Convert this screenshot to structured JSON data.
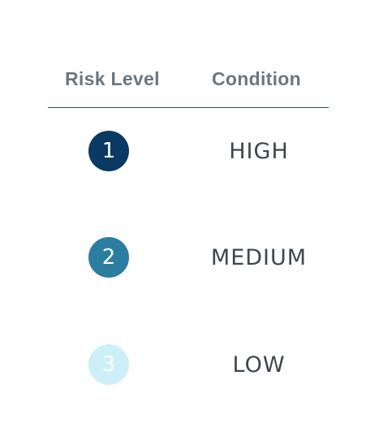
{
  "table": {
    "headers": {
      "risk_level": "Risk Level",
      "condition": "Condition"
    },
    "rows": [
      {
        "level": "1",
        "condition": "HIGH",
        "color": "#0a3a63"
      },
      {
        "level": "2",
        "condition": "MEDIUM",
        "color": "#2b7ea1"
      },
      {
        "level": "3",
        "condition": "LOW",
        "color": "#cdeff7"
      }
    ]
  }
}
